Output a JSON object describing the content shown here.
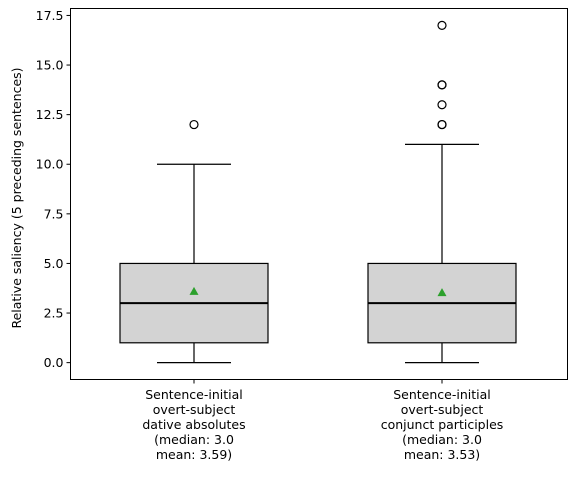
{
  "chart_data": {
    "type": "boxplot",
    "ylabel": "Relative saliency (5 preceding sentences)",
    "ylim": [
      -0.85,
      17.85
    ],
    "yticks": [
      0.0,
      2.5,
      5.0,
      7.5,
      10.0,
      12.5,
      15.0,
      17.5
    ],
    "ytick_labels": [
      "0.0",
      "2.5",
      "5.0",
      "7.5",
      "10.0",
      "12.5",
      "15.0",
      "17.5"
    ],
    "grid": false,
    "colors": {
      "box_fill": "#d3d3d3",
      "mean_marker": "#2ca02c",
      "line": "#000000"
    },
    "categories": [
      {
        "label_lines": [
          "Sentence-initial",
          "overt-subject",
          "dative absolutes",
          "(median: 3.0",
          "mean: 3.59)"
        ],
        "whisker_low": 0,
        "q1": 1,
        "median": 3.0,
        "q3": 5,
        "whisker_high": 10,
        "mean": 3.59,
        "outliers": [
          12
        ]
      },
      {
        "label_lines": [
          "Sentence-initial",
          "overt-subject",
          "conjunct participles",
          "(median: 3.0",
          "mean: 3.53)"
        ],
        "whisker_low": 0,
        "q1": 1,
        "median": 3.0,
        "q3": 5,
        "whisker_high": 11,
        "mean": 3.53,
        "outliers": [
          12,
          12,
          13,
          14,
          14,
          17
        ]
      }
    ]
  }
}
